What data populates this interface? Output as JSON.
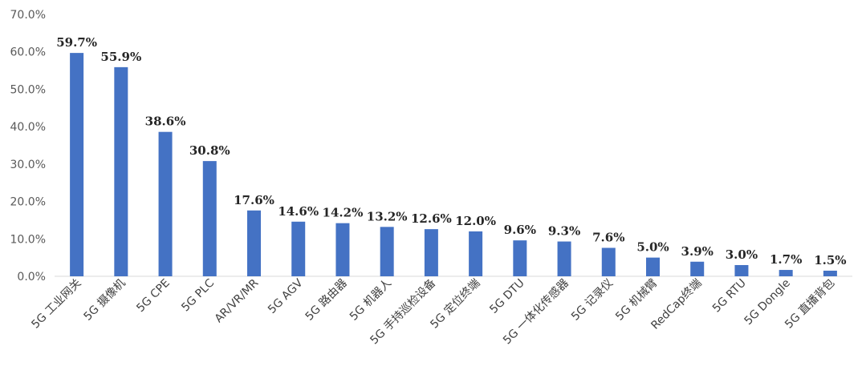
{
  "chart_data": {
    "type": "bar",
    "categories": [
      "5G 工业网关",
      "5G 摄像机",
      "5G CPE",
      "5G PLC",
      "AR/VR/MR",
      "5G AGV",
      "5G 路由器",
      "5G 机器人",
      "5G 手持巡检设备",
      "5G 定位终端",
      "5G DTU",
      "5G 一体化传感器",
      "5G 记录仪",
      "5G 机械臂",
      "RedCap终端",
      "5G RTU",
      "5G Dongle",
      "5G 直播背包"
    ],
    "values": [
      59.7,
      55.9,
      38.6,
      30.8,
      17.6,
      14.6,
      14.2,
      13.2,
      12.6,
      12.0,
      9.6,
      9.3,
      7.6,
      5.0,
      3.9,
      3.0,
      1.7,
      1.5
    ],
    "data_labels": [
      "59.7%",
      "55.9%",
      "38.6%",
      "30.8%",
      "17.6%",
      "14.6%",
      "14.2%",
      "13.2%",
      "12.6%",
      "12.0%",
      "9.6%",
      "9.3%",
      "7.6%",
      "5.0%",
      "3.9%",
      "3.0%",
      "1.7%",
      "1.5%"
    ],
    "yticks": [
      "0.0%",
      "10.0%",
      "20.0%",
      "30.0%",
      "40.0%",
      "50.0%",
      "60.0%",
      "70.0%"
    ],
    "ylim": [
      0,
      70
    ],
    "title": "",
    "xlabel": "",
    "ylabel": "",
    "grid": false,
    "bar_color": "#4472C4"
  }
}
